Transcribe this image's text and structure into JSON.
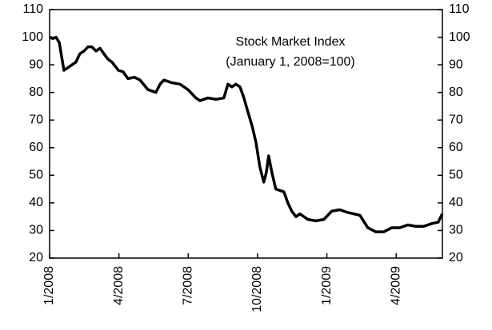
{
  "chart_data": {
    "type": "line",
    "title": [
      "Stock Market Index",
      "(January 1, 2008=100)"
    ],
    "x": [
      0,
      0.14,
      0.28,
      0.42,
      0.52,
      0.62,
      0.8,
      0.97,
      1.14,
      1.31,
      1.49,
      1.66,
      1.83,
      2.01,
      2.18,
      2.35,
      2.53,
      2.7,
      2.98,
      3.18,
      3.39,
      3.67,
      3.91,
      4.26,
      4.6,
      4.78,
      4.95,
      5.29,
      5.64,
      5.99,
      6.33,
      6.51,
      6.85,
      7.2,
      7.54,
      7.72,
      7.89,
      8.06,
      8.24,
      8.41,
      8.58,
      8.76,
      8.93,
      9.1,
      9.27,
      9.38,
      9.48,
      9.62,
      9.79,
      10.14,
      10.31,
      10.48,
      10.66,
      10.83,
      11.18,
      11.52,
      11.87,
      12.21,
      12.56,
      12.91,
      13.43,
      13.77,
      14.12,
      14.46,
      14.81,
      15.16,
      15.5,
      15.85,
      16.19,
      16.54,
      16.82,
      16.99
    ],
    "values": [
      100,
      99.5,
      100,
      98,
      93,
      88,
      89,
      90,
      91,
      94,
      95,
      96.5,
      96.5,
      95,
      96,
      94,
      92,
      91,
      88,
      87.5,
      85,
      85.5,
      84.5,
      81,
      80,
      83,
      84.5,
      83.5,
      83,
      81,
      78,
      77,
      78,
      77.5,
      78,
      83,
      82,
      83,
      82,
      78,
      73,
      68,
      62,
      53,
      47.5,
      51,
      57,
      51,
      45,
      44,
      40,
      37,
      35,
      36,
      34,
      33.5,
      34,
      37,
      37.5,
      36.5,
      35.5,
      31,
      29.5,
      29.5,
      31,
      31,
      32,
      31.5,
      31.5,
      32.5,
      33,
      36
    ],
    "color": "#000000",
    "xlim": [
      0,
      17
    ],
    "xticks": [
      {
        "value": 0,
        "label": "1/2008"
      },
      {
        "value": 3,
        "label": "4/2008"
      },
      {
        "value": 6,
        "label": "7/2008"
      },
      {
        "value": 9,
        "label": "10/2008"
      },
      {
        "value": 12,
        "label": "1/2009"
      },
      {
        "value": 15,
        "label": "4/2009"
      }
    ],
    "ylim": [
      20,
      110
    ],
    "yticks": [
      20,
      30,
      40,
      50,
      60,
      70,
      80,
      90,
      100,
      110
    ],
    "right_axis": true,
    "grid": false
  }
}
